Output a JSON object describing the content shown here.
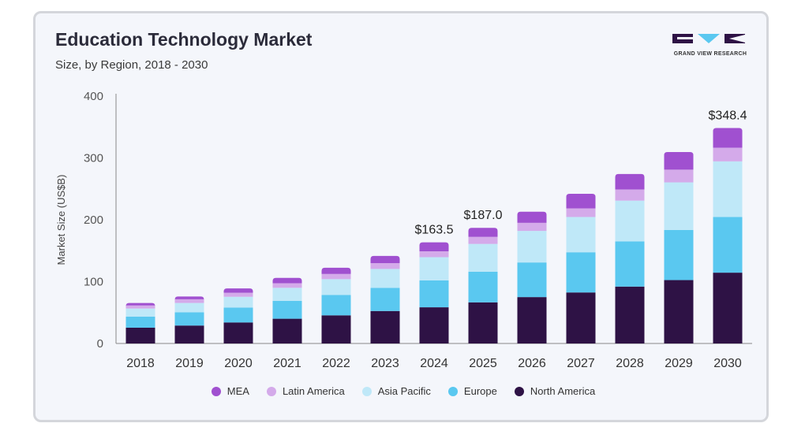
{
  "header": {
    "title": "Education Technology Market",
    "subtitle": "Size, by Region, 2018 - 2030",
    "logo_text": "GRAND VIEW RESEARCH"
  },
  "colors": {
    "north_america": "#2e1245",
    "europe": "#5ac8f0",
    "asia_pacific": "#bfe8f8",
    "latin_america": "#d4aaea",
    "mea": "#a050d0",
    "axis": "#888888",
    "tick_text": "#555555"
  },
  "chart_data": {
    "type": "bar",
    "stacked": true,
    "ylabel": "Market Size (US$B)",
    "xlabel": "",
    "ylim": [
      0,
      400
    ],
    "yticks": [
      0,
      100,
      200,
      300,
      400
    ],
    "grid": false,
    "legend_position": "bottom",
    "categories": [
      "2018",
      "2019",
      "2020",
      "2021",
      "2022",
      "2023",
      "2024",
      "2025",
      "2026",
      "2027",
      "2028",
      "2029",
      "2030"
    ],
    "series": [
      {
        "name": "North America",
        "color_key": "north_america",
        "values": [
          25.5,
          29,
          34,
          40,
          45.5,
          52.5,
          58.5,
          66.5,
          75,
          82.5,
          92,
          102.5,
          114.5
        ]
      },
      {
        "name": "Europe",
        "color_key": "europe",
        "values": [
          18,
          21.5,
          24,
          29,
          33,
          37.5,
          43.5,
          49.5,
          56,
          65,
          73,
          81,
          90
        ]
      },
      {
        "name": "Asia Pacific",
        "color_key": "asia_pacific",
        "values": [
          13,
          15,
          17.5,
          21,
          25.5,
          30.5,
          37.5,
          45,
          51,
          57,
          66,
          77,
          90
        ]
      },
      {
        "name": "Latin America",
        "color_key": "latin_america",
        "values": [
          5,
          6,
          6.5,
          7.5,
          8.5,
          9.5,
          9.5,
          11.5,
          13,
          14,
          18,
          20.5,
          22
        ]
      },
      {
        "name": "MEA",
        "color_key": "mea",
        "values": [
          4,
          4.5,
          7,
          8.5,
          10,
          11.5,
          14.5,
          14.5,
          18,
          23.5,
          25,
          28.5,
          31.9
        ]
      }
    ],
    "annotations": [
      {
        "category": "2024",
        "label": "$163.5"
      },
      {
        "category": "2025",
        "label": "$187.0"
      },
      {
        "category": "2030",
        "label": "$348.4"
      }
    ],
    "legend_entries": [
      "MEA",
      "Latin America",
      "Asia Pacific",
      "Europe",
      "North America"
    ]
  }
}
